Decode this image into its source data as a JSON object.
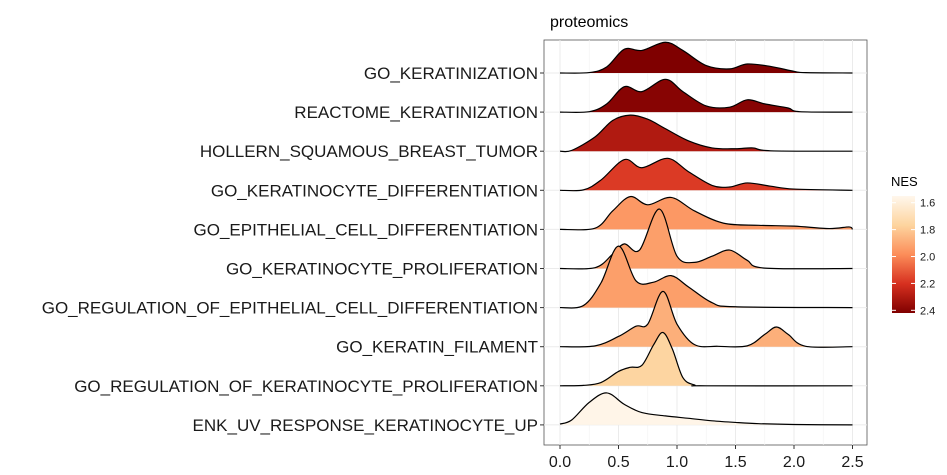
{
  "chart_data": {
    "type": "ridgeline",
    "title": "proteomics",
    "xlabel": "",
    "ylabel": "",
    "xlim": [
      -0.15,
      2.6
    ],
    "x_ticks": [
      0.0,
      0.5,
      1.0,
      1.5,
      2.0,
      2.5
    ],
    "x_tick_labels": [
      "0.0",
      "0.5",
      "1.0",
      "1.5",
      "2.0",
      "2.5"
    ],
    "grid": true,
    "legend": {
      "title": "NES",
      "position": "right",
      "tick_values": [
        1.6,
        1.8,
        2.0,
        2.2,
        2.4
      ],
      "tick_labels": [
        "1.6",
        "1.8",
        "2.0",
        "2.2",
        "2.4"
      ],
      "range": [
        1.55,
        2.42
      ],
      "colors": [
        "#fff7ec",
        "#fdd49e",
        "#fc8d59",
        "#d7301f",
        "#7f0000"
      ]
    },
    "series": [
      {
        "name": "GO_KERATINIZATION",
        "nes": 2.42,
        "x": [
          0.0,
          0.25,
          0.4,
          0.55,
          0.7,
          0.9,
          1.05,
          1.25,
          1.45,
          1.6,
          1.8,
          2.0,
          2.1,
          2.5
        ],
        "density": [
          0,
          0.01,
          0.15,
          0.58,
          0.55,
          0.75,
          0.55,
          0.18,
          0.1,
          0.22,
          0.16,
          0.04,
          0.01,
          0
        ]
      },
      {
        "name": "REACTOME_KERATINIZATION",
        "nes": 2.4,
        "x": [
          0.0,
          0.25,
          0.4,
          0.55,
          0.7,
          0.9,
          1.05,
          1.25,
          1.45,
          1.6,
          1.75,
          1.95,
          2.05,
          2.5
        ],
        "density": [
          0,
          0.01,
          0.2,
          0.62,
          0.5,
          0.8,
          0.5,
          0.15,
          0.12,
          0.3,
          0.2,
          0.1,
          0.01,
          0
        ]
      },
      {
        "name": "HOLLERN_SQUAMOUS_BREAST_TUMOR",
        "nes": 2.3,
        "x": [
          0.0,
          0.1,
          0.3,
          0.45,
          0.6,
          0.75,
          0.9,
          1.1,
          1.3,
          1.5,
          1.65,
          1.8,
          2.5
        ],
        "density": [
          0,
          0.02,
          0.35,
          0.75,
          0.88,
          0.78,
          0.55,
          0.25,
          0.08,
          0.06,
          0.08,
          0.01,
          0
        ]
      },
      {
        "name": "GO_KERATINOCYTE_DIFFERENTIATION",
        "nes": 2.18,
        "x": [
          0.0,
          0.2,
          0.35,
          0.55,
          0.7,
          0.92,
          1.1,
          1.3,
          1.45,
          1.6,
          1.8,
          2.0,
          2.5
        ],
        "density": [
          0,
          0.01,
          0.25,
          0.75,
          0.55,
          0.78,
          0.45,
          0.12,
          0.08,
          0.18,
          0.1,
          0.03,
          0
        ]
      },
      {
        "name": "GO_EPITHELIAL_CELL_DIFFERENTIATION",
        "nes": 1.95,
        "x": [
          0.0,
          0.3,
          0.45,
          0.6,
          0.75,
          0.95,
          1.15,
          1.4,
          1.7,
          2.0,
          2.3,
          2.47,
          2.5
        ],
        "density": [
          0,
          0.03,
          0.45,
          0.8,
          0.6,
          0.78,
          0.45,
          0.15,
          0.1,
          0.08,
          0.02,
          0.06,
          0
        ]
      },
      {
        "name": "GO_KERATINOCYTE_PROLIFERATION",
        "nes": 1.93,
        "x": [
          0.0,
          0.3,
          0.45,
          0.55,
          0.68,
          0.85,
          1.0,
          1.15,
          1.3,
          1.45,
          1.6,
          1.75,
          2.5
        ],
        "density": [
          0,
          0.02,
          0.35,
          0.6,
          0.45,
          1.45,
          0.3,
          0.15,
          0.3,
          0.45,
          0.2,
          0.01,
          0
        ]
      },
      {
        "name": "GO_REGULATION_OF_EPITHELIAL_CELL_DIFFERENTIATION",
        "nes": 1.93,
        "x": [
          0.0,
          0.2,
          0.35,
          0.5,
          0.65,
          0.8,
          0.95,
          1.1,
          1.3,
          1.5,
          2.5
        ],
        "density": [
          0,
          0.05,
          0.6,
          1.5,
          0.65,
          0.62,
          0.78,
          0.5,
          0.12,
          0.02,
          0
        ]
      },
      {
        "name": "GO_KERATIN_FILAMENT",
        "nes": 1.88,
        "x": [
          0.0,
          0.3,
          0.5,
          0.65,
          0.75,
          0.88,
          1.0,
          1.15,
          1.35,
          1.6,
          1.75,
          1.85,
          1.95,
          2.1,
          2.5
        ],
        "density": [
          0,
          0.02,
          0.25,
          0.5,
          0.55,
          1.35,
          0.55,
          0.05,
          0.01,
          0.02,
          0.3,
          0.48,
          0.3,
          0.01,
          0
        ]
      },
      {
        "name": "GO_REGULATION_OF_KERATINOCYTE_PROLIFERATION",
        "nes": 1.76,
        "x": [
          0.0,
          0.2,
          0.35,
          0.5,
          0.6,
          0.7,
          0.8,
          0.88,
          0.96,
          1.05,
          1.15,
          1.25,
          2.5
        ],
        "density": [
          0,
          0.01,
          0.08,
          0.35,
          0.45,
          0.5,
          1.0,
          1.3,
          0.9,
          0.2,
          0.02,
          0.0,
          0
        ]
      },
      {
        "name": "ENK_UV_RESPONSE_KERATINOCYTE_UP",
        "nes": 1.56,
        "x": [
          0.0,
          0.1,
          0.25,
          0.4,
          0.55,
          0.7,
          0.9,
          1.1,
          1.3,
          1.5,
          1.7,
          2.0,
          2.5
        ],
        "density": [
          0.02,
          0.12,
          0.55,
          0.78,
          0.5,
          0.3,
          0.22,
          0.16,
          0.1,
          0.06,
          0.03,
          0.01,
          0
        ]
      }
    ]
  }
}
